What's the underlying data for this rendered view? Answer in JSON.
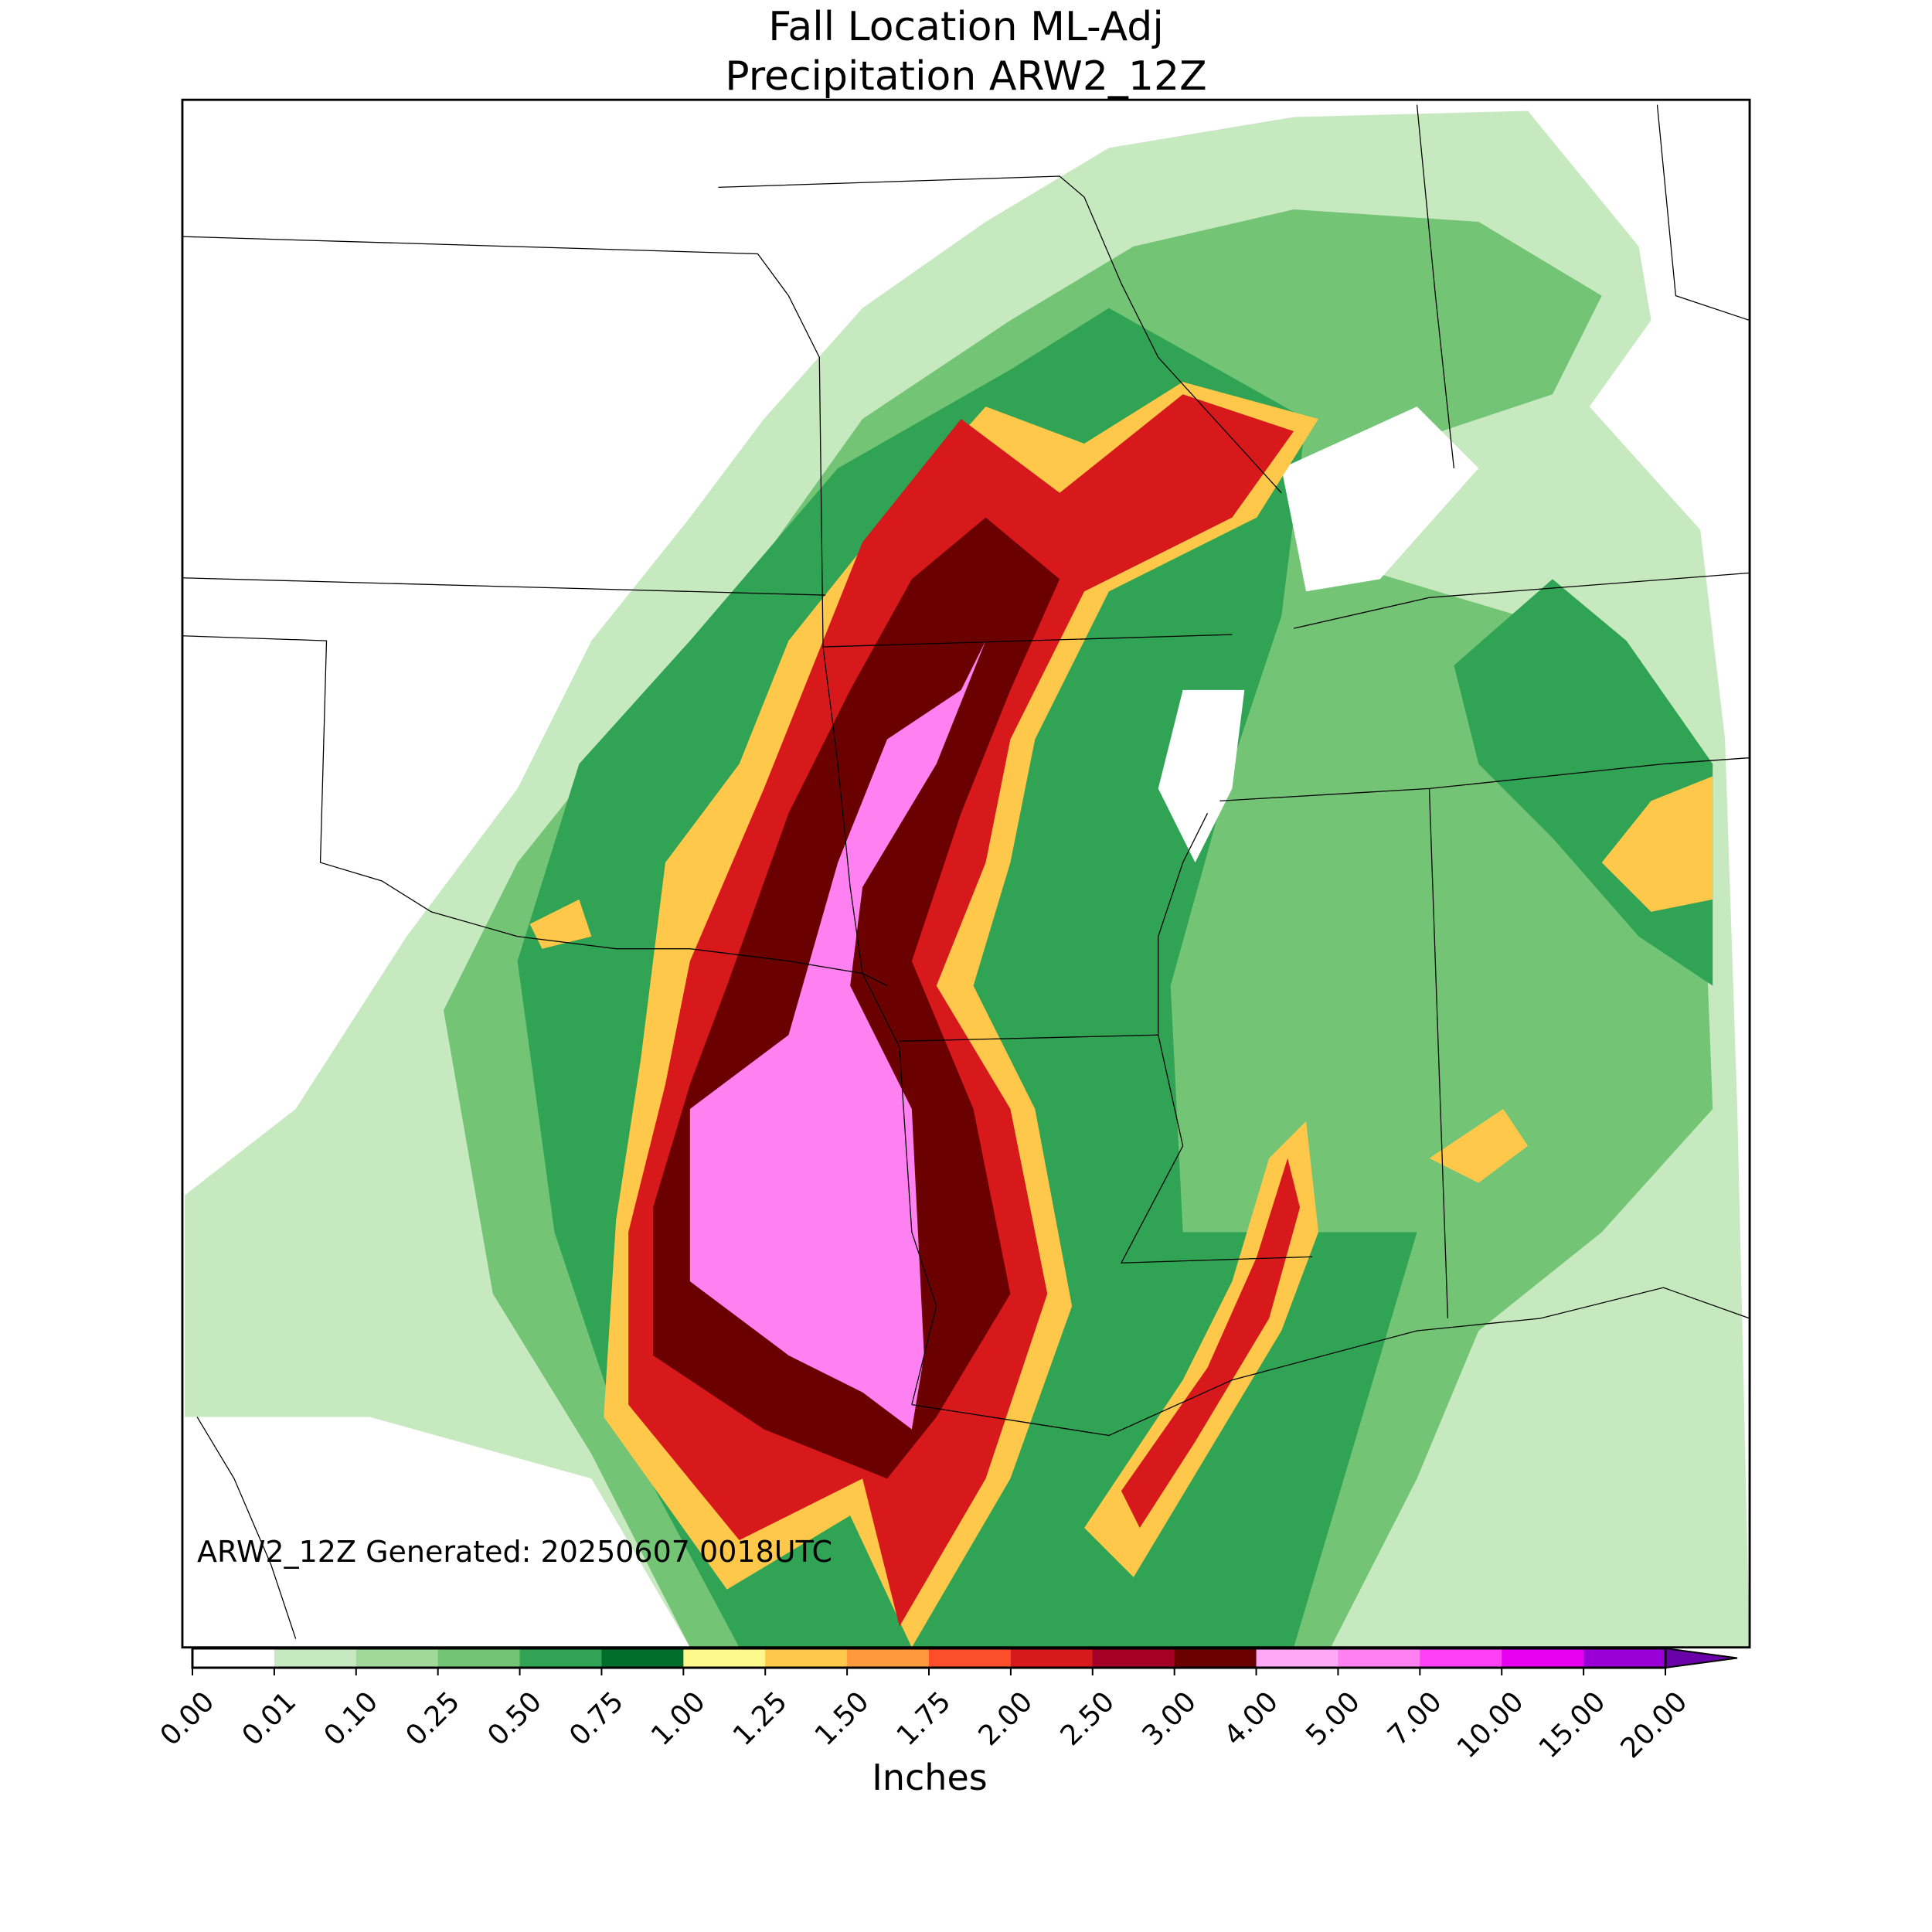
{
  "title": [
    "Fall Location ML-Adj",
    "Precipitation ARW2_12Z"
  ],
  "annotation": "ARW2_12Z Generated: 20250607 0018UTC",
  "colorbar": {
    "label": "Inches",
    "ticks": [
      {
        "value": 0,
        "label": "0.00"
      },
      {
        "value": 0.01,
        "label": "0.01"
      },
      {
        "value": 0.1,
        "label": "0.10"
      },
      {
        "value": 0.25,
        "label": "0.25"
      },
      {
        "value": 0.5,
        "label": "0.50"
      },
      {
        "value": 0.75,
        "label": "0.75"
      },
      {
        "value": 1,
        "label": "1.00"
      },
      {
        "value": 1.25,
        "label": "1.25"
      },
      {
        "value": 1.5,
        "label": "1.50"
      },
      {
        "value": 1.75,
        "label": "1.75"
      },
      {
        "value": 2,
        "label": "2.00"
      },
      {
        "value": 2.5,
        "label": "2.50"
      },
      {
        "value": 3,
        "label": "3.00"
      },
      {
        "value": 4,
        "label": "4.00"
      },
      {
        "value": 5,
        "label": "5.00"
      },
      {
        "value": 7,
        "label": "7.00"
      },
      {
        "value": 10,
        "label": "10.00"
      },
      {
        "value": 15,
        "label": "15.00"
      },
      {
        "value": 20,
        "label": "20.00"
      }
    ],
    "colors": [
      "#ffffff",
      "#c7e9c0",
      "#a1d99b",
      "#74c476",
      "#31a354",
      "#006d2c",
      "#fff98c",
      "#ffc84a",
      "#ff9a3c",
      "#fc4e2a",
      "#d7191c",
      "#a50026",
      "#6b0000",
      "#ffa8f5",
      "#ff80f0",
      "#ff40f5",
      "#e800f0",
      "#9a00d6"
    ],
    "extend_color": "#6a00a8"
  }
}
